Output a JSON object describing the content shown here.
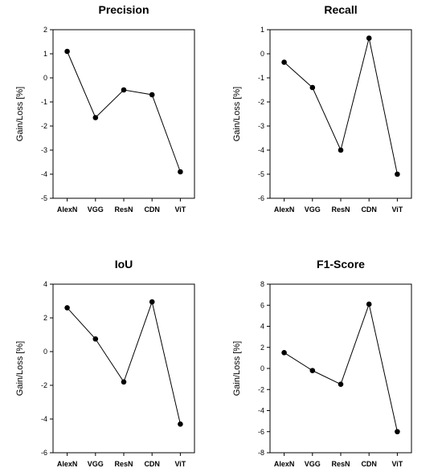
{
  "chart_data": [
    {
      "type": "line",
      "title": "Precision",
      "ylabel": "Gain/Loss [%]",
      "categories": [
        "AlexN",
        "VGG",
        "ResN",
        "CDN",
        "ViT"
      ],
      "values": [
        1.1,
        -1.65,
        -0.5,
        -0.7,
        -3.9
      ],
      "ylim": [
        -5,
        2
      ],
      "yticks": [
        2,
        1,
        0,
        -1,
        -2,
        -3,
        -4,
        -5
      ],
      "grid": false
    },
    {
      "type": "line",
      "title": "Recall",
      "ylabel": "Gain/Loss [%]",
      "categories": [
        "AlexN",
        "VGG",
        "ResN",
        "CDN",
        "ViT"
      ],
      "values": [
        -0.35,
        -1.4,
        -4.0,
        0.65,
        -5.0
      ],
      "ylim": [
        -6,
        1
      ],
      "yticks": [
        1,
        0,
        -1,
        -2,
        -3,
        -4,
        -5,
        -6
      ],
      "grid": false
    },
    {
      "type": "line",
      "title": "IoU",
      "ylabel": "Gain/Loss [%]",
      "categories": [
        "AlexN",
        "VGG",
        "ResN",
        "CDN",
        "ViT"
      ],
      "values": [
        2.6,
        0.75,
        -1.8,
        2.95,
        -4.3
      ],
      "ylim": [
        -6,
        4
      ],
      "yticks": [
        4,
        2,
        0,
        -2,
        -4,
        -6
      ],
      "grid": false
    },
    {
      "type": "line",
      "title": "F1-Score",
      "ylabel": "Gain/Loss [%]",
      "categories": [
        "AlexN",
        "VGG",
        "ResN",
        "CDN",
        "ViT"
      ],
      "values": [
        1.5,
        -0.2,
        -1.5,
        6.1,
        -6.0
      ],
      "ylim": [
        -8,
        8
      ],
      "yticks": [
        8,
        6,
        4,
        2,
        0,
        -2,
        -4,
        -6,
        -8
      ],
      "grid": false
    }
  ]
}
